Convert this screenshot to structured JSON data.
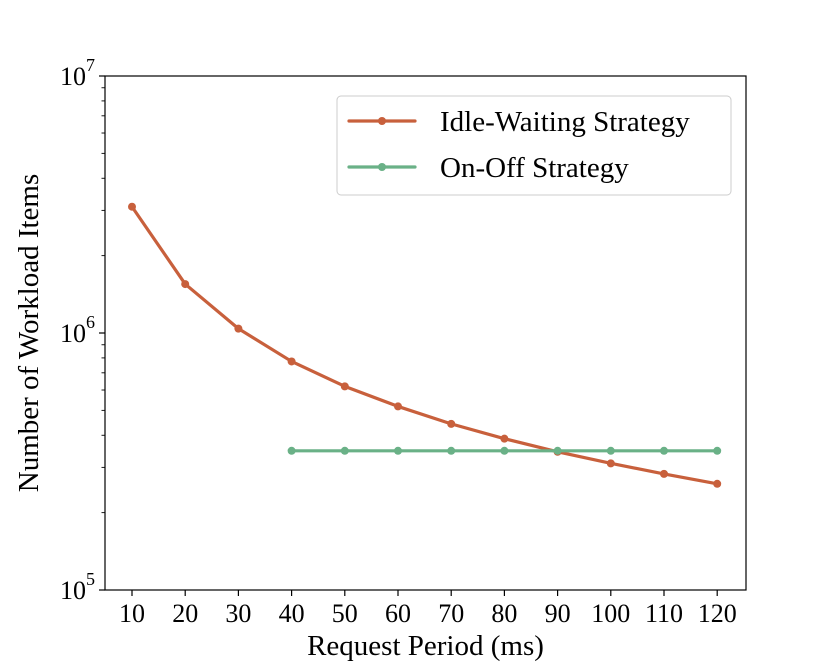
{
  "chart_data": {
    "type": "line",
    "title": "",
    "xlabel": "Request Period (ms)",
    "ylabel": "Number of Workload Items",
    "yscale": "log",
    "ylim": [
      100000,
      10000000
    ],
    "y_ticks": [
      {
        "value": 100000,
        "base": "10",
        "exp": "5"
      },
      {
        "value": 1000000,
        "base": "10",
        "exp": "6"
      },
      {
        "value": 10000000,
        "base": "10",
        "exp": "7"
      }
    ],
    "categories": [
      "10",
      "20",
      "30",
      "40",
      "50",
      "60",
      "70",
      "80",
      "90",
      "100",
      "110",
      "120"
    ],
    "x_values": [
      10,
      20,
      30,
      40,
      50,
      60,
      70,
      80,
      90,
      100,
      110,
      120
    ],
    "grid": false,
    "legend_position": "top-right",
    "series": [
      {
        "name": "Idle-Waiting Strategy",
        "color": "#c8603c",
        "x": [
          10,
          20,
          30,
          40,
          50,
          60,
          70,
          80,
          90,
          100,
          110,
          120
        ],
        "values": [
          3100000,
          1550000,
          1040000,
          775000,
          620000,
          518000,
          443000,
          388000,
          345000,
          311000,
          283000,
          259000
        ]
      },
      {
        "name": "On-Off Strategy",
        "color": "#6ab187",
        "x": [
          40,
          50,
          60,
          70,
          80,
          90,
          100,
          110,
          120
        ],
        "values": [
          348000,
          348000,
          348000,
          348000,
          348000,
          348000,
          348000,
          348000,
          348000
        ]
      }
    ]
  }
}
